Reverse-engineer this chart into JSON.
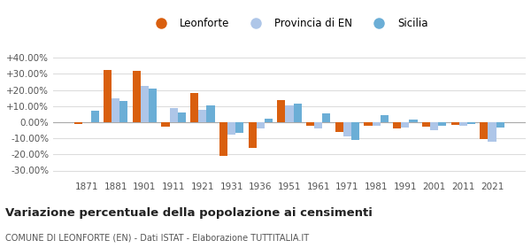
{
  "years": [
    1871,
    1881,
    1901,
    1911,
    1921,
    1931,
    1936,
    1951,
    1961,
    1971,
    1981,
    1991,
    2001,
    2011,
    2021
  ],
  "leonforte": [
    -1.0,
    32.5,
    32.0,
    -3.0,
    18.0,
    -21.0,
    -16.0,
    13.5,
    -2.5,
    -6.0,
    -2.5,
    -4.0,
    -3.0,
    -1.5,
    -10.5
  ],
  "provincia_en": [
    0.0,
    15.0,
    22.5,
    9.0,
    7.5,
    -8.0,
    -4.0,
    10.5,
    -4.0,
    -9.0,
    -2.0,
    -3.5,
    -5.0,
    -2.5,
    -12.0
  ],
  "sicilia": [
    7.0,
    13.0,
    21.0,
    6.0,
    10.5,
    -6.5,
    2.0,
    11.5,
    5.5,
    -11.0,
    4.5,
    1.5,
    -2.0,
    -1.0,
    -3.5
  ],
  "color_leonforte": "#d95f0e",
  "color_provincia": "#aec6e8",
  "color_sicilia": "#6baed6",
  "title": "Variazione percentuale della popolazione ai censimenti",
  "subtitle": "COMUNE DI LEONFORTE (EN) - Dati ISTAT - Elaborazione TUTTITALIA.IT",
  "ylim": [
    -35,
    45
  ],
  "yticks": [
    -30,
    -20,
    -10,
    0,
    10,
    20,
    30,
    40
  ],
  "ytick_labels": [
    "-30.00%",
    "-20.00%",
    "-10.00%",
    "0.00%",
    "+10.00%",
    "+20.00%",
    "+30.00%",
    "+40.00%"
  ],
  "background_color": "#ffffff",
  "grid_color": "#dddddd",
  "legend_labels": [
    "Leonforte",
    "Provincia di EN",
    "Sicilia"
  ]
}
